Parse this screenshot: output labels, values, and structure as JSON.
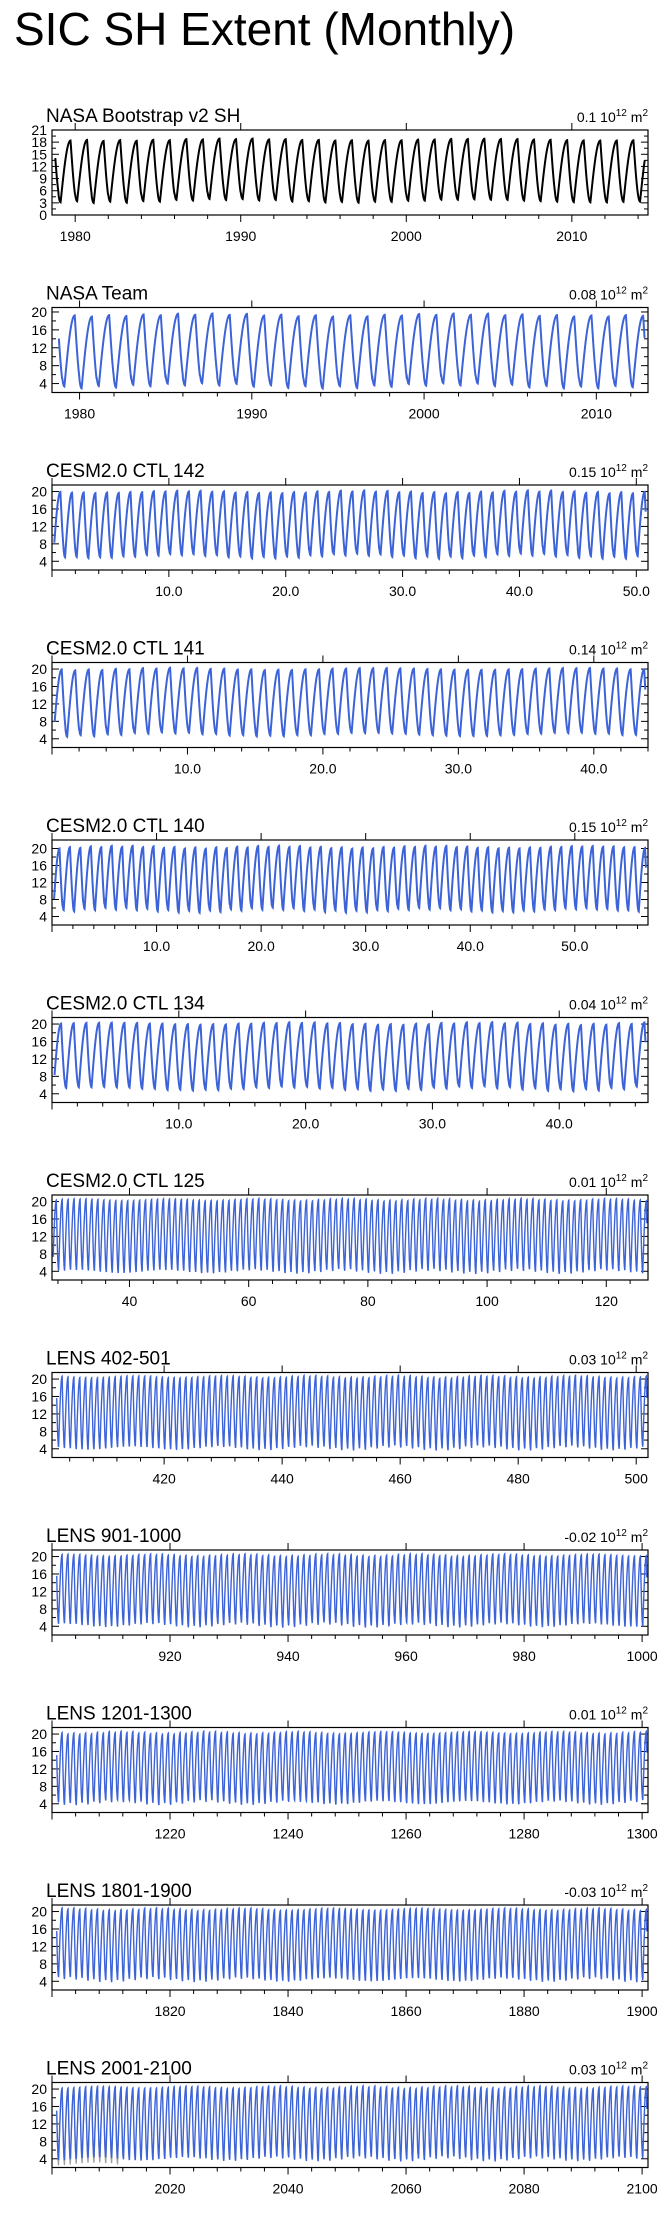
{
  "title": "SIC SH Extent (Monthly)",
  "style": {
    "black": "#000000",
    "blue": "#3d63d8",
    "grey": "#a0a0a0"
  },
  "chart_data": [
    {
      "type": "line",
      "label": "NASA Bootstrap v2 SH",
      "trend": "0.1",
      "unit_base": "10",
      "unit_exp": "12",
      "unit_suffix": "m",
      "color": "#000000",
      "line_style": "solid",
      "xlim": [
        1978.6,
        2014.6
      ],
      "ylim": [
        0,
        21
      ],
      "yticks": [
        0,
        3,
        6,
        9,
        12,
        15,
        18,
        21
      ],
      "yticklabels": [
        "0",
        "3",
        "6",
        "9",
        "12",
        "15",
        "18",
        "21"
      ],
      "xticks": [
        1980,
        1990,
        2000,
        2010
      ],
      "xticklabels": [
        "1980",
        "1990",
        "2000",
        "2010"
      ],
      "cycle": {
        "start": 1978.8,
        "end": 2014.4,
        "cycles_per_x": 1,
        "min": 3.5,
        "max": 18.6,
        "min_phase": 0.12,
        "max_phase": 0.72
      }
    },
    {
      "type": "line",
      "label": "NASA Team",
      "trend": "0.08",
      "unit_base": "10",
      "unit_exp": "12",
      "unit_suffix": "m",
      "color": "#3d63d8",
      "line_style": "solid",
      "xlim": [
        1978.4,
        2013.0
      ],
      "ylim": [
        2,
        21
      ],
      "yticks": [
        4,
        8,
        12,
        16,
        20
      ],
      "yticklabels": [
        "4",
        "8",
        "12",
        "16",
        "20"
      ],
      "xticks": [
        1980,
        1990,
        2000,
        2010
      ],
      "xticklabels": [
        "1980",
        "1990",
        "2000",
        "2010"
      ],
      "cycle": {
        "start": 1978.8,
        "end": 2012.8,
        "cycles_per_x": 1,
        "min": 3.5,
        "max": 19.3,
        "min_phase": 0.12,
        "max_phase": 0.72
      }
    },
    {
      "type": "line",
      "label": "CESM2.0 CTL 142",
      "trend": "0.15",
      "unit_base": "10",
      "unit_exp": "12",
      "unit_suffix": "m",
      "color": "#3d63d8",
      "line_style": "solid",
      "xlim": [
        0,
        51
      ],
      "ylim": [
        2,
        21.5
      ],
      "yticks": [
        4,
        8,
        12,
        16,
        20
      ],
      "yticklabels": [
        "4",
        "8",
        "12",
        "16",
        "20"
      ],
      "xticks": [
        10,
        20,
        30,
        40,
        50
      ],
      "xticklabels": [
        "10.0",
        "20.0",
        "30.0",
        "40.0",
        "50.0"
      ],
      "cycle": {
        "start": 0.2,
        "end": 50.8,
        "cycles_per_x": 1,
        "min": 5.2,
        "max": 19.9,
        "min_phase": 0.12,
        "max_phase": 0.72
      }
    },
    {
      "type": "line",
      "label": "CESM2.0 CTL 141",
      "trend": "0.14",
      "unit_base": "10",
      "unit_exp": "12",
      "unit_suffix": "m",
      "color": "#3d63d8",
      "line_style": "solid",
      "xlim": [
        0,
        44
      ],
      "ylim": [
        2,
        21.5
      ],
      "yticks": [
        4,
        8,
        12,
        16,
        20
      ],
      "yticklabels": [
        "4",
        "8",
        "12",
        "16",
        "20"
      ],
      "xticks": [
        10,
        20,
        30,
        40
      ],
      "xticklabels": [
        "10.0",
        "20.0",
        "30.0",
        "40.0"
      ],
      "cycle": {
        "start": 0.2,
        "end": 43.8,
        "cycles_per_x": 1,
        "min": 5.0,
        "max": 20.0,
        "min_phase": 0.12,
        "max_phase": 0.72
      }
    },
    {
      "type": "line",
      "label": "CESM2.0 CTL 140",
      "trend": "0.15",
      "unit_base": "10",
      "unit_exp": "12",
      "unit_suffix": "m",
      "color": "#3d63d8",
      "line_style": "solid",
      "xlim": [
        0,
        57
      ],
      "ylim": [
        2,
        22
      ],
      "yticks": [
        4,
        8,
        12,
        16,
        20
      ],
      "yticklabels": [
        "4",
        "8",
        "12",
        "16",
        "20"
      ],
      "xticks": [
        10,
        20,
        30,
        40,
        50
      ],
      "xticklabels": [
        "10.0",
        "20.0",
        "30.0",
        "40.0",
        "50.0"
      ],
      "cycle": {
        "start": 0.2,
        "end": 56.8,
        "cycles_per_x": 1,
        "min": 5.5,
        "max": 20.3,
        "min_phase": 0.12,
        "max_phase": 0.72
      }
    },
    {
      "type": "line",
      "label": "CESM2.0 CTL 134",
      "trend": "0.04",
      "unit_base": "10",
      "unit_exp": "12",
      "unit_suffix": "m",
      "color": "#3d63d8",
      "line_style": "solid",
      "xlim": [
        0,
        47
      ],
      "ylim": [
        2,
        21.5
      ],
      "yticks": [
        4,
        8,
        12,
        16,
        20
      ],
      "yticklabels": [
        "4",
        "8",
        "12",
        "16",
        "20"
      ],
      "xticks": [
        10,
        20,
        30,
        40
      ],
      "xticklabels": [
        "10.0",
        "20.0",
        "30.0",
        "40.0"
      ],
      "cycle": {
        "start": 0.2,
        "end": 46.8,
        "cycles_per_x": 1,
        "min": 5.2,
        "max": 20.1,
        "min_phase": 0.12,
        "max_phase": 0.72
      }
    },
    {
      "type": "line",
      "label": "CESM2.0 CTL 125",
      "trend": "0.01",
      "unit_base": "10",
      "unit_exp": "12",
      "unit_suffix": "m",
      "color": "#3d63d8",
      "line_style": "solid",
      "xlim": [
        27,
        127
      ],
      "ylim": [
        2,
        21.5
      ],
      "yticks": [
        4,
        8,
        12,
        16,
        20
      ],
      "yticklabels": [
        "4",
        "8",
        "12",
        "16",
        "20"
      ],
      "xticks": [
        40,
        60,
        80,
        100,
        120
      ],
      "xticklabels": [
        "40",
        "60",
        "80",
        "100",
        "120"
      ],
      "cycle": {
        "start": 27.2,
        "end": 126.8,
        "cycles_per_x": 1,
        "min": 4.0,
        "max": 20.4,
        "min_phase": 0.12,
        "max_phase": 0.72
      }
    },
    {
      "type": "line",
      "label": "LENS 402-501",
      "trend": "0.03",
      "unit_base": "10",
      "unit_exp": "12",
      "unit_suffix": "m",
      "color": "#3d63d8",
      "line_style": "solid",
      "xlim": [
        401,
        502
      ],
      "ylim": [
        2,
        21.5
      ],
      "yticks": [
        4,
        8,
        12,
        16,
        20
      ],
      "yticklabels": [
        "4",
        "8",
        "12",
        "16",
        "20"
      ],
      "xticks": [
        420,
        440,
        460,
        480,
        500
      ],
      "xticklabels": [
        "420",
        "440",
        "460",
        "480",
        "500"
      ],
      "cycle": {
        "start": 401.8,
        "end": 501.8,
        "cycles_per_x": 1,
        "min": 4.2,
        "max": 20.5,
        "min_phase": 0.12,
        "max_phase": 0.72
      }
    },
    {
      "type": "line",
      "label": "LENS 901-1000",
      "trend": "-0.02",
      "unit_base": "10",
      "unit_exp": "12",
      "unit_suffix": "m",
      "color": "#3d63d8",
      "line_style": "solid",
      "xlim": [
        900,
        1001
      ],
      "ylim": [
        2,
        21.5
      ],
      "yticks": [
        4,
        8,
        12,
        16,
        20
      ],
      "yticklabels": [
        "4",
        "8",
        "12",
        "16",
        "20"
      ],
      "xticks": [
        920,
        940,
        960,
        980,
        1000
      ],
      "xticklabels": [
        "920",
        "940",
        "960",
        "980",
        "1000"
      ],
      "cycle": {
        "start": 900.8,
        "end": 1000.8,
        "cycles_per_x": 1,
        "min": 4.3,
        "max": 20.3,
        "min_phase": 0.12,
        "max_phase": 0.72
      }
    },
    {
      "type": "line",
      "label": "LENS 1201-1300",
      "trend": "0.01",
      "unit_base": "10",
      "unit_exp": "12",
      "unit_suffix": "m",
      "color": "#3d63d8",
      "line_style": "solid",
      "xlim": [
        1200,
        1301
      ],
      "ylim": [
        2,
        21.5
      ],
      "yticks": [
        4,
        8,
        12,
        16,
        20
      ],
      "yticklabels": [
        "4",
        "8",
        "12",
        "16",
        "20"
      ],
      "xticks": [
        1220,
        1240,
        1260,
        1280,
        1300
      ],
      "xticklabels": [
        "1220",
        "1240",
        "1260",
        "1280",
        "1300"
      ],
      "cycle": {
        "start": 1200.8,
        "end": 1300.8,
        "cycles_per_x": 1,
        "min": 4.3,
        "max": 20.3,
        "min_phase": 0.12,
        "max_phase": 0.72
      }
    },
    {
      "type": "line",
      "label": "LENS 1801-1900",
      "trend": "-0.03",
      "unit_base": "10",
      "unit_exp": "12",
      "unit_suffix": "m",
      "color": "#3d63d8",
      "line_style": "solid",
      "xlim": [
        1800,
        1901
      ],
      "ylim": [
        2,
        21.5
      ],
      "yticks": [
        4,
        8,
        12,
        16,
        20
      ],
      "yticklabels": [
        "4",
        "8",
        "12",
        "16",
        "20"
      ],
      "xticks": [
        1820,
        1840,
        1860,
        1880,
        1900
      ],
      "xticklabels": [
        "1820",
        "1840",
        "1860",
        "1880",
        "1900"
      ],
      "cycle": {
        "start": 1800.8,
        "end": 1900.8,
        "cycles_per_x": 1,
        "min": 4.4,
        "max": 20.5,
        "min_phase": 0.12,
        "max_phase": 0.72
      }
    },
    {
      "type": "line",
      "label": "LENS 2001-2100",
      "trend": "0.03",
      "unit_base": "10",
      "unit_exp": "12",
      "unit_suffix": "m",
      "color": "#3d63d8",
      "line_style": "solid",
      "xlim": [
        2000,
        2101
      ],
      "ylim": [
        2,
        21.5
      ],
      "yticks": [
        4,
        8,
        12,
        16,
        20
      ],
      "yticklabels": [
        "4",
        "8",
        "12",
        "16",
        "20"
      ],
      "xticks": [
        2020,
        2040,
        2060,
        2080,
        2100
      ],
      "xticklabels": [
        "2020",
        "2040",
        "2060",
        "2080",
        "2100"
      ],
      "cycle": {
        "start": 2000.8,
        "end": 2100.8,
        "cycles_per_x": 1,
        "min": 4.0,
        "max": 20.4,
        "min_phase": 0.12,
        "max_phase": 0.72
      },
      "overlay": {
        "color": "#a0a0a0",
        "start": 2000.8,
        "end": 2012.0,
        "min": 2.8,
        "max": 20.2
      }
    }
  ]
}
